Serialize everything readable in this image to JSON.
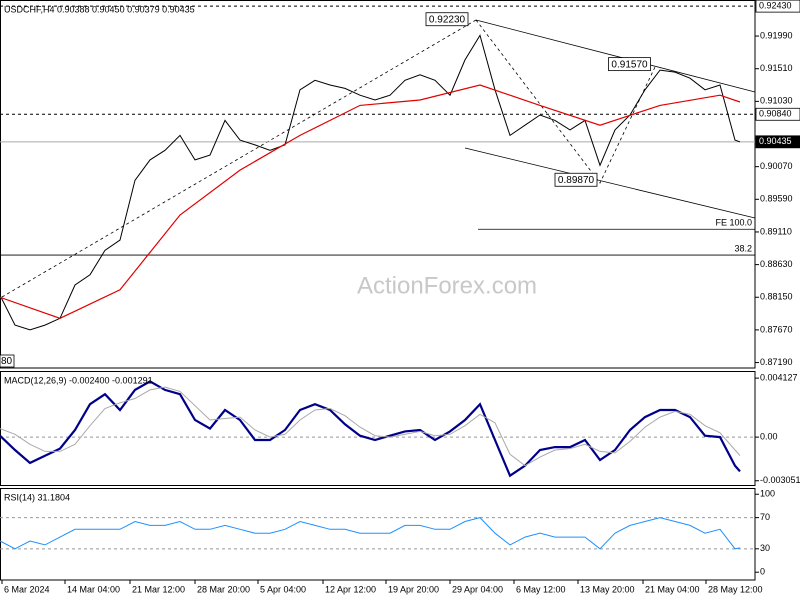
{
  "chart_data": [
    {
      "type": "line",
      "title": "USDCHF,H4  0.90388 0.90450 0.90379 0.90435",
      "watermark": "ActionForex.com",
      "edge_label": "80",
      "x": [
        0,
        3,
        6,
        9,
        12,
        15,
        18,
        21,
        24,
        27,
        30,
        33,
        36,
        39,
        42,
        45,
        48,
        51,
        54,
        57,
        60,
        63,
        66,
        69,
        72,
        75,
        78,
        81,
        84,
        87,
        90,
        93,
        96,
        99,
        102,
        105,
        108,
        111,
        114,
        117,
        120,
        123,
        126,
        129,
        132,
        135,
        138,
        141,
        144,
        147,
        148
      ],
      "series": [
        {
          "color": "#000000",
          "width": 1,
          "values": [
            0.8818,
            0.8774,
            0.8767,
            0.8774,
            0.8784,
            0.8833,
            0.8848,
            0.8884,
            0.8899,
            0.8987,
            0.9017,
            0.9031,
            0.9053,
            0.9017,
            0.9024,
            0.9075,
            0.9046,
            0.9039,
            0.9031,
            0.9039,
            0.912,
            0.9134,
            0.9127,
            0.9122,
            0.9112,
            0.9105,
            0.9112,
            0.9134,
            0.9142,
            0.9134,
            0.9112,
            0.9164,
            0.92,
            0.912,
            0.9053,
            0.9068,
            0.9083,
            0.9075,
            0.9061,
            0.9075,
            0.9009,
            0.9061,
            0.9083,
            0.912,
            0.9149,
            0.9146,
            0.9137,
            0.912,
            0.9127,
            0.9046,
            0.90435
          ]
        },
        {
          "color": "#e00000",
          "width": 1.2,
          "x": [
            0,
            12,
            24,
            36,
            48,
            60,
            72,
            84,
            96,
            108,
            120,
            132,
            144,
            148
          ],
          "values": [
            0.8815,
            0.8784,
            0.8826,
            0.8936,
            0.9002,
            0.9053,
            0.9097,
            0.9105,
            0.9127,
            0.9097,
            0.9068,
            0.9097,
            0.9112,
            0.9102
          ]
        }
      ],
      "xlim": [
        0,
        151
      ],
      "ylim": [
        0.8711,
        0.9252
      ],
      "yticks": [
        {
          "value": 0.9199,
          "label": "0.91990"
        },
        {
          "value": 0.9151,
          "label": "0.91510"
        },
        {
          "value": 0.9103,
          "label": "0.91030"
        },
        {
          "value": 0.9007,
          "label": "0.90070"
        },
        {
          "value": 0.8959,
          "label": "0.89590"
        },
        {
          "value": 0.8911,
          "label": "0.89110"
        },
        {
          "value": 0.8863,
          "label": "0.88630"
        },
        {
          "value": 0.8815,
          "label": "0.88150"
        },
        {
          "value": 0.8767,
          "label": "0.87670"
        },
        {
          "value": 0.8719,
          "label": "0.87190"
        }
      ],
      "levels": [
        {
          "value": 0.9243,
          "label": "0.92430",
          "style": "dashed"
        },
        {
          "value": 0.9084,
          "label": "0.90840",
          "style": "dashed"
        },
        {
          "value": 0.90435,
          "label": "0.90435",
          "style": "current"
        },
        {
          "value": 0.8915,
          "label": "FE 100.0",
          "style": "fib",
          "from": 95.6
        },
        {
          "value": 0.8877,
          "label": "38.2",
          "style": "fib",
          "from": 0
        }
      ],
      "annotations": [
        {
          "value": 0.9223,
          "label": "0.92230",
          "x": 94
        },
        {
          "value": 0.9157,
          "label": "0.91570",
          "x": 130.5
        },
        {
          "value": 0.8987,
          "label": "0.89870",
          "x": 119.8
        }
      ]
    },
    {
      "type": "line",
      "title": "MACD(12,26,9) -0.002400 -0.001291",
      "x": [
        0,
        3,
        6,
        9,
        12,
        15,
        18,
        21,
        24,
        27,
        30,
        33,
        36,
        39,
        42,
        45,
        48,
        51,
        54,
        57,
        60,
        63,
        66,
        69,
        72,
        75,
        78,
        81,
        84,
        87,
        90,
        93,
        96,
        99,
        102,
        105,
        108,
        111,
        114,
        117,
        120,
        123,
        126,
        129,
        132,
        135,
        138,
        141,
        144,
        147,
        148
      ],
      "series": [
        {
          "color": "#00008b",
          "width": 2.2,
          "values": [
            0.0001,
            -0.0009,
            -0.0018,
            -0.0013,
            -0.0008,
            0.0005,
            0.0023,
            0.003,
            0.0019,
            0.0033,
            0.0039,
            0.0033,
            0.003,
            0.0012,
            0.0006,
            0.0019,
            0.0012,
            -0.0002,
            -0.0002,
            0.0005,
            0.0019,
            0.0023,
            0.0019,
            0.0009,
            0.0001,
            -0.0002,
            0.0001,
            0.0004,
            0.0005,
            -0.0002,
            0.0004,
            0.0012,
            0.0023,
            -0.0002,
            -0.0027,
            -0.002,
            -0.0009,
            -0.0007,
            -0.0007,
            -0.0002,
            -0.0016,
            -0.0009,
            0.0005,
            0.0014,
            0.0019,
            0.0019,
            0.0014,
            0.0001,
            0.0,
            -0.002,
            -0.0024
          ]
        },
        {
          "color": "#a9a9a9",
          "width": 1,
          "values": [
            0.0006,
            0.0002,
            -0.0005,
            -0.001,
            -0.001,
            -0.0005,
            0.0008,
            0.002,
            0.0024,
            0.0027,
            0.0033,
            0.0035,
            0.0032,
            0.0022,
            0.0012,
            0.0013,
            0.0014,
            0.0005,
            0.0,
            0.0002,
            0.0012,
            0.0019,
            0.002,
            0.0015,
            0.0007,
            0.0001,
            0.0,
            0.0002,
            0.0004,
            0.0001,
            0.0002,
            0.0008,
            0.0016,
            0.001,
            -0.0012,
            -0.002,
            -0.0014,
            -0.0009,
            -0.0008,
            -0.0005,
            -0.001,
            -0.0011,
            -0.0003,
            0.0007,
            0.0014,
            0.0018,
            0.0016,
            0.0008,
            0.0003,
            -0.0009,
            -0.001291
          ]
        }
      ],
      "xlim": [
        0,
        151
      ],
      "ylim": [
        -0.003418,
        0.004625
      ],
      "yticks": [
        0.004127,
        {
          "value": 0,
          "label": "0.00"
        },
        -0.003051
      ],
      "levels": [
        0
      ]
    },
    {
      "type": "line",
      "title": "RSI(14) 31.1804",
      "x": [
        0,
        3,
        6,
        9,
        12,
        15,
        18,
        21,
        24,
        27,
        30,
        33,
        36,
        39,
        42,
        45,
        48,
        51,
        54,
        57,
        60,
        63,
        66,
        69,
        72,
        75,
        78,
        81,
        84,
        87,
        90,
        93,
        96,
        99,
        102,
        105,
        108,
        111,
        114,
        117,
        120,
        123,
        126,
        129,
        132,
        135,
        138,
        141,
        144,
        147,
        148
      ],
      "series": [
        {
          "color": "#1e90ff",
          "width": 1,
          "values": [
            40,
            30,
            40,
            35,
            45,
            55,
            55,
            55,
            55,
            65,
            60,
            60,
            65,
            55,
            55,
            60,
            55,
            50,
            50,
            55,
            65,
            60,
            55,
            55,
            50,
            50,
            50,
            60,
            60,
            55,
            55,
            65,
            70,
            50,
            35,
            45,
            50,
            45,
            45,
            45,
            30,
            50,
            60,
            65,
            70,
            65,
            60,
            50,
            55,
            30,
            31.1804
          ]
        }
      ],
      "xlim": [
        0,
        151
      ],
      "ylim": [
        -10,
        108
      ],
      "yticks": [
        100,
        70,
        30,
        0
      ],
      "levels": [
        70,
        30
      ],
      "xticks": [
        {
          "value": 0.4,
          "label": "6 Mar 2024"
        },
        {
          "value": 13,
          "label": "14 Mar 04:00"
        },
        {
          "value": 26,
          "label": "21 Mar 12:00"
        },
        {
          "value": 39,
          "label": "28 Mar 20:00"
        },
        {
          "value": 51.6,
          "label": "5 Apr 04:00"
        },
        {
          "value": 64.6,
          "label": "12 Apr 12:00"
        },
        {
          "value": 77.2,
          "label": "19 Apr 20:00"
        },
        {
          "value": 90,
          "label": "29 Apr 04:00"
        },
        {
          "value": 102.8,
          "label": "6 May 12:00"
        },
        {
          "value": 115.6,
          "label": "13 May 20:00"
        },
        {
          "value": 128.6,
          "label": "21 May 04:00"
        },
        {
          "value": 141.2,
          "label": "28 May 12:00"
        }
      ]
    }
  ]
}
